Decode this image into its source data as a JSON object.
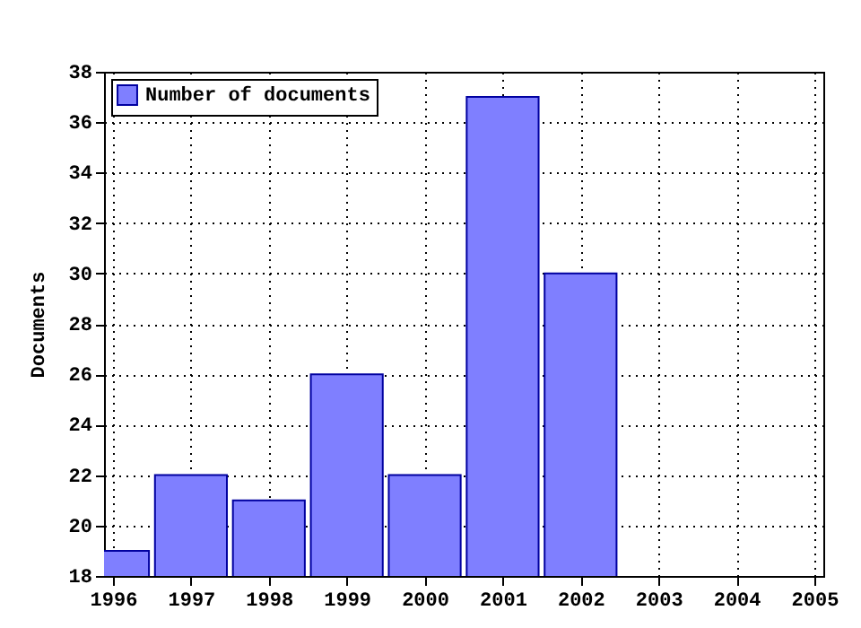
{
  "chart_data": {
    "type": "bar",
    "ylabel": "Documents",
    "x": [
      1996,
      1997,
      1998,
      1999,
      2000,
      2001,
      2002
    ],
    "series": [
      {
        "name": "Number of documents",
        "color": "#7f7fff",
        "values": [
          19,
          22,
          21,
          26,
          22,
          37,
          30
        ]
      }
    ],
    "xlim": [
      1996,
      2005
    ],
    "xticks": [
      1996,
      1997,
      1998,
      1999,
      2000,
      2001,
      2002,
      2003,
      2004,
      2005
    ],
    "ylim": [
      18,
      38
    ],
    "yticks": [
      18,
      20,
      22,
      24,
      26,
      28,
      30,
      32,
      34,
      36,
      38
    ],
    "grid": true,
    "legend": "top left"
  }
}
